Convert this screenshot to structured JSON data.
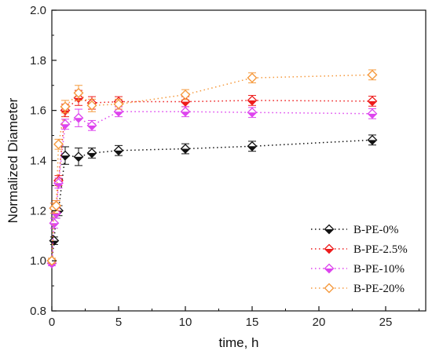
{
  "chart_data": {
    "type": "line",
    "xlabel": "time, h",
    "ylabel": "Normalized Diameter",
    "xlim": [
      0,
      28
    ],
    "ylim": [
      0.8,
      2.0
    ],
    "xticks": [
      0,
      5,
      10,
      15,
      20,
      25
    ],
    "yticks": [
      0.8,
      1.0,
      1.2,
      1.4,
      1.6,
      1.8,
      2.0
    ],
    "x_tick_labels": [
      "0",
      "5",
      "10",
      "15",
      "20",
      "25"
    ],
    "y_tick_labels": [
      "0.8",
      "1.0",
      "1.2",
      "1.4",
      "1.6",
      "1.8",
      "2.0"
    ],
    "grid": false,
    "legend_position": "bottom-right",
    "x": [
      0,
      0.17,
      0.33,
      0.5,
      1,
      2,
      3,
      5,
      10,
      15,
      24
    ],
    "series": [
      {
        "name": "B-PE-0%",
        "color": "#111111",
        "marker": "diamond-filled",
        "values": [
          1.0,
          1.08,
          1.19,
          1.2,
          1.42,
          1.415,
          1.43,
          1.44,
          1.447,
          1.457,
          1.482
        ],
        "errors": [
          0.01,
          0.015,
          0.02,
          0.02,
          0.035,
          0.035,
          0.02,
          0.02,
          0.02,
          0.02,
          0.02
        ]
      },
      {
        "name": "B-PE-2.5%",
        "color": "#ee1c1c",
        "marker": "diamond-filled",
        "values": [
          1.0,
          1.21,
          1.22,
          1.32,
          1.6,
          1.65,
          1.63,
          1.635,
          1.635,
          1.64,
          1.637
        ],
        "errors": [
          0.01,
          0.02,
          0.02,
          0.02,
          0.025,
          0.03,
          0.025,
          0.02,
          0.02,
          0.02,
          0.02
        ]
      },
      {
        "name": "B-PE-10%",
        "color": "#dd44ee",
        "marker": "diamond-filled",
        "values": [
          0.99,
          1.15,
          1.19,
          1.31,
          1.545,
          1.57,
          1.54,
          1.595,
          1.595,
          1.592,
          1.587
        ],
        "errors": [
          0.01,
          0.02,
          0.02,
          0.02,
          0.02,
          0.035,
          0.02,
          0.02,
          0.02,
          0.02,
          0.02
        ]
      },
      {
        "name": "B-PE-20%",
        "color": "#f59a3e",
        "marker": "diamond-open",
        "values": [
          1.0,
          1.21,
          1.22,
          1.465,
          1.615,
          1.67,
          1.62,
          1.625,
          1.663,
          1.73,
          1.742
        ],
        "errors": [
          0.01,
          0.02,
          0.02,
          0.02,
          0.025,
          0.03,
          0.025,
          0.02,
          0.02,
          0.02,
          0.02
        ]
      }
    ]
  }
}
